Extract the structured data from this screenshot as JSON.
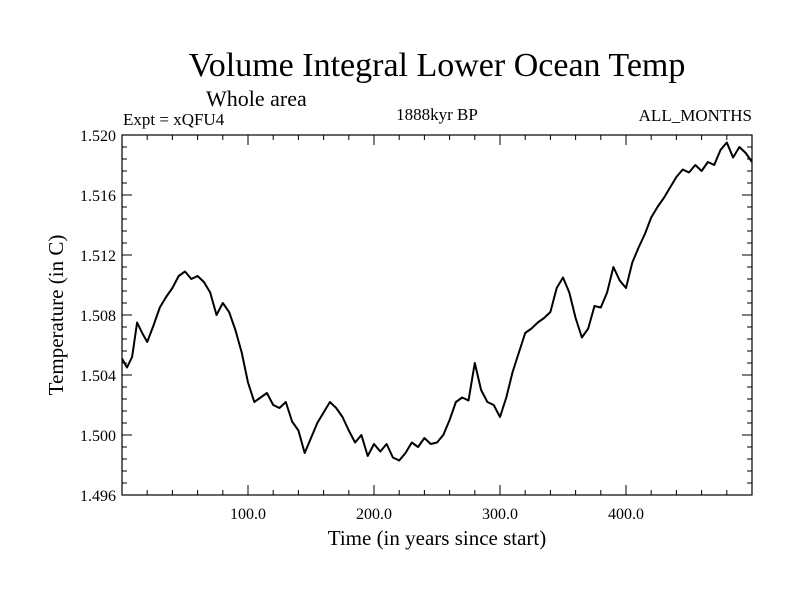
{
  "chart_data": {
    "type": "line",
    "title": "Volume Integral Lower Ocean Temp",
    "subtitle": "Whole area",
    "annotations": {
      "left": "Expt = xQFU4",
      "center": "1888kyr BP",
      "right": "ALL_MONTHS"
    },
    "xlabel": "Time (in years since start)",
    "ylabel": "Temperature (in C)",
    "xlim": [
      0,
      500
    ],
    "ylim": [
      1.496,
      1.52
    ],
    "xticks": [
      100,
      200,
      300,
      400
    ],
    "xtick_labels": [
      "100.0",
      "200.0",
      "300.0",
      "400.0"
    ],
    "yticks": [
      1.496,
      1.5,
      1.504,
      1.508,
      1.512,
      1.516,
      1.52
    ],
    "ytick_labels": [
      "1.496",
      "1.500",
      "1.504",
      "1.508",
      "1.512",
      "1.516",
      "1.520"
    ],
    "grid": false,
    "series": [
      {
        "name": "Volume Integral Lower Ocean Temp",
        "color": "#000000",
        "x": [
          0,
          4,
          8,
          12,
          16,
          20,
          25,
          30,
          35,
          40,
          45,
          50,
          55,
          60,
          65,
          70,
          75,
          80,
          85,
          90,
          95,
          100,
          105,
          110,
          115,
          120,
          125,
          130,
          135,
          140,
          145,
          150,
          155,
          160,
          165,
          170,
          175,
          180,
          185,
          190,
          195,
          200,
          205,
          210,
          215,
          220,
          225,
          230,
          235,
          240,
          245,
          250,
          255,
          260,
          265,
          270,
          275,
          280,
          285,
          290,
          295,
          300,
          305,
          310,
          315,
          320,
          325,
          330,
          335,
          340,
          345,
          350,
          355,
          360,
          365,
          370,
          375,
          380,
          385,
          390,
          395,
          400,
          405,
          410,
          415,
          420,
          425,
          430,
          435,
          440,
          445,
          450,
          455,
          460,
          465,
          470,
          475,
          480,
          485,
          490,
          495,
          500
        ],
        "values": [
          1.5051,
          1.5045,
          1.5052,
          1.5075,
          1.5068,
          1.5062,
          1.5073,
          1.5085,
          1.5092,
          1.5098,
          1.5106,
          1.5109,
          1.5104,
          1.5106,
          1.5102,
          1.5095,
          1.508,
          1.5088,
          1.5082,
          1.507,
          1.5055,
          1.5035,
          1.5022,
          1.5025,
          1.5028,
          1.502,
          1.5018,
          1.5022,
          1.5009,
          1.5003,
          1.4988,
          1.4998,
          1.5008,
          1.5015,
          1.5022,
          1.5018,
          1.5012,
          1.5003,
          1.4995,
          1.5,
          1.4986,
          1.4994,
          1.4989,
          1.4994,
          1.4985,
          1.4983,
          1.4988,
          1.4995,
          1.4992,
          1.4998,
          1.4994,
          1.4995,
          1.5,
          1.501,
          1.5022,
          1.5025,
          1.5023,
          1.5048,
          1.503,
          1.5022,
          1.502,
          1.5012,
          1.5025,
          1.5042,
          1.5055,
          1.5068,
          1.5071,
          1.5075,
          1.5078,
          1.5082,
          1.5098,
          1.5105,
          1.5095,
          1.5078,
          1.5065,
          1.5071,
          1.5086,
          1.5085,
          1.5095,
          1.5112,
          1.5103,
          1.5098,
          1.5115,
          1.5125,
          1.5134,
          1.5145,
          1.5152,
          1.5158,
          1.5165,
          1.5172,
          1.5177,
          1.5175,
          1.518,
          1.5176,
          1.5182,
          1.518,
          1.519,
          1.5195,
          1.5185,
          1.5192,
          1.5188,
          1.5182
        ]
      }
    ]
  }
}
